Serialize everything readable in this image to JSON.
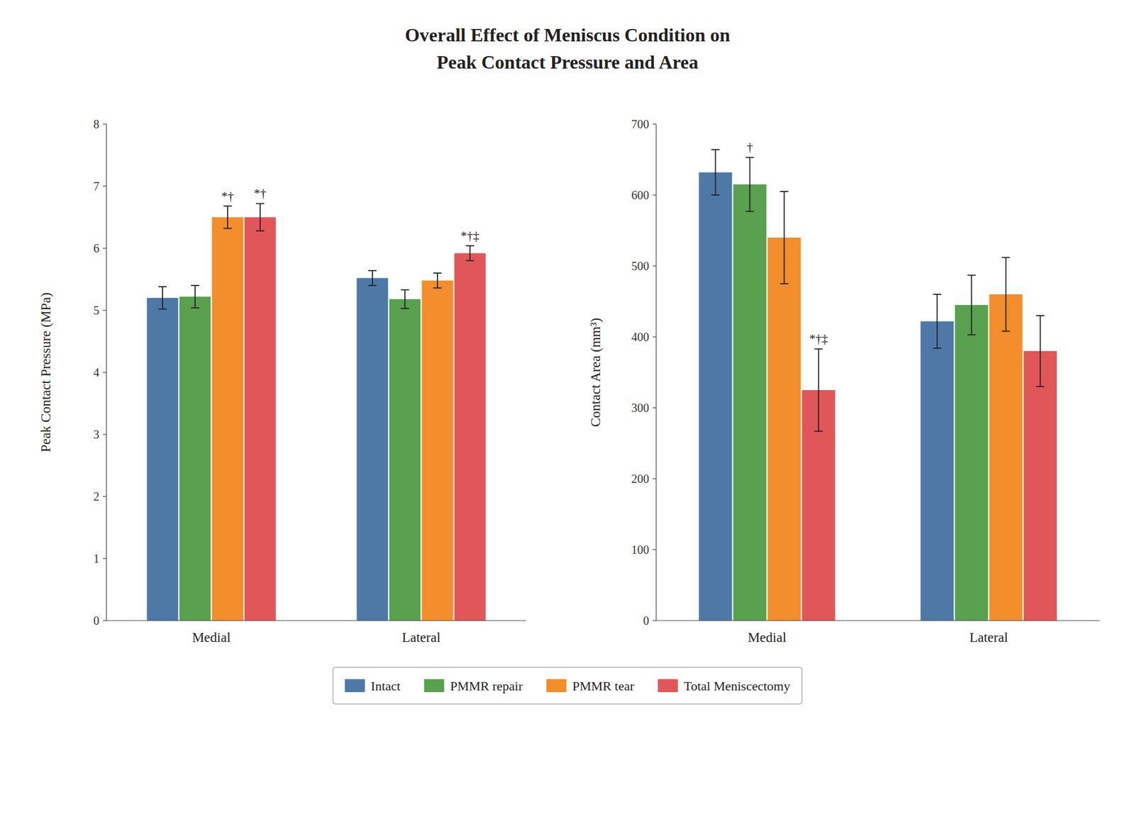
{
  "chart_data": [
    {
      "type": "bar",
      "title": "Overall Effect of Meniscus Condition on",
      "subtitle": "Peak Contact Pressure and Area",
      "ylabel": "Peak Contact Pressure (MPa)",
      "categories": [
        "Medial",
        "Lateral"
      ],
      "series": [
        {
          "name": "Intact",
          "color": "#4e79a7",
          "values": [
            5.2,
            5.52
          ],
          "errors": [
            0.18,
            0.12
          ]
        },
        {
          "name": "PMMR repair",
          "color": "#59a14f",
          "values": [
            5.22,
            5.18
          ],
          "errors": [
            0.18,
            0.15
          ]
        },
        {
          "name": "PMMR tear",
          "color": "#f28e2b",
          "values": [
            6.5,
            5.48
          ],
          "errors": [
            0.18,
            0.12
          ],
          "annotations": [
            "*†",
            null
          ]
        },
        {
          "name": "Total Meniscectomy",
          "color": "#e15759",
          "values": [
            6.5,
            5.92
          ],
          "errors": [
            0.22,
            0.12
          ],
          "annotations": [
            "*†",
            "*†‡"
          ]
        }
      ],
      "ylim": [
        0,
        8
      ],
      "yticks": [
        0,
        1,
        2,
        3,
        4,
        5,
        6,
        7,
        8
      ],
      "grid": false,
      "legend": "bottom"
    },
    {
      "type": "bar",
      "ylabel": "Contact Area (mm³)",
      "categories": [
        "Medial",
        "Lateral"
      ],
      "series": [
        {
          "name": "Intact",
          "color": "#4e79a7",
          "values": [
            632,
            422
          ],
          "errors": [
            32,
            38
          ]
        },
        {
          "name": "PMMR repair",
          "color": "#59a14f",
          "values": [
            615,
            445
          ],
          "errors": [
            38,
            42
          ],
          "annotations": [
            "†",
            null
          ]
        },
        {
          "name": "PMMR tear",
          "color": "#f28e2b",
          "values": [
            540,
            460
          ],
          "errors": [
            65,
            52
          ]
        },
        {
          "name": "Total Meniscectomy",
          "color": "#e15759",
          "values": [
            325,
            380
          ],
          "errors": [
            58,
            50
          ],
          "annotations": [
            "*†‡",
            null
          ]
        }
      ],
      "ylim": [
        0,
        700
      ],
      "yticks": [
        0,
        100,
        200,
        300,
        400,
        500,
        600,
        700
      ],
      "grid": false
    }
  ]
}
